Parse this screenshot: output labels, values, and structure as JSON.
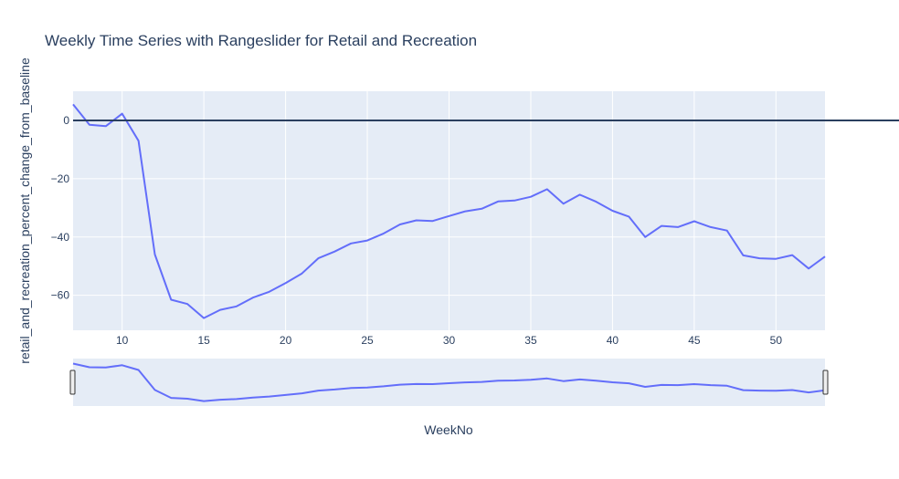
{
  "chart_data": {
    "type": "line",
    "title": "Weekly Time Series with Rangeslider for Retail and Recreation",
    "xlabel": "WeekNo",
    "ylabel": "retail_and_recreation_percent_change_from_baseline",
    "xlim": [
      7,
      53
    ],
    "ylim": [
      -72,
      10
    ],
    "x_ticks": [
      10,
      15,
      20,
      25,
      30,
      35,
      40,
      45,
      50
    ],
    "y_ticks": [
      0,
      -20,
      -40,
      -60
    ],
    "reference_line": {
      "y": 0,
      "color": "#2a3f5f"
    },
    "rangeslider": true,
    "grid": true,
    "colors": {
      "line": "#636efa",
      "plot_bg": "#e5ecf6",
      "grid": "#ffffff",
      "text": "#2a3f5f"
    },
    "series": [
      {
        "x": [
          7,
          8,
          9,
          10,
          11,
          12,
          13,
          14,
          15,
          16,
          17,
          18,
          19,
          20,
          21,
          22,
          23,
          24,
          25,
          26,
          27,
          28,
          29,
          30,
          31,
          32,
          33,
          34,
          35,
          36,
          37,
          38,
          39,
          40,
          41,
          42,
          43,
          44,
          45,
          46,
          47,
          48,
          49,
          50,
          51,
          52,
          53
        ],
        "values": [
          5.5,
          -1.5,
          -2,
          2.3,
          -7,
          -46,
          -61.5,
          -63,
          -67.8,
          -65,
          -63.8,
          -60.8,
          -58.8,
          -55.8,
          -52.5,
          -47.3,
          -45,
          -42.2,
          -41.2,
          -38.8,
          -35.7,
          -34.3,
          -34.5,
          -32.8,
          -31.2,
          -30.3,
          -27.8,
          -27.5,
          -26.2,
          -23.6,
          -28.6,
          -25.5,
          -27.9,
          -31,
          -33,
          -40,
          -36.2,
          -36.6,
          -34.6,
          -36.6,
          -37.8,
          -46.3,
          -47.3,
          -47.5,
          -46.2,
          -50.8,
          -46.7
        ]
      }
    ]
  }
}
